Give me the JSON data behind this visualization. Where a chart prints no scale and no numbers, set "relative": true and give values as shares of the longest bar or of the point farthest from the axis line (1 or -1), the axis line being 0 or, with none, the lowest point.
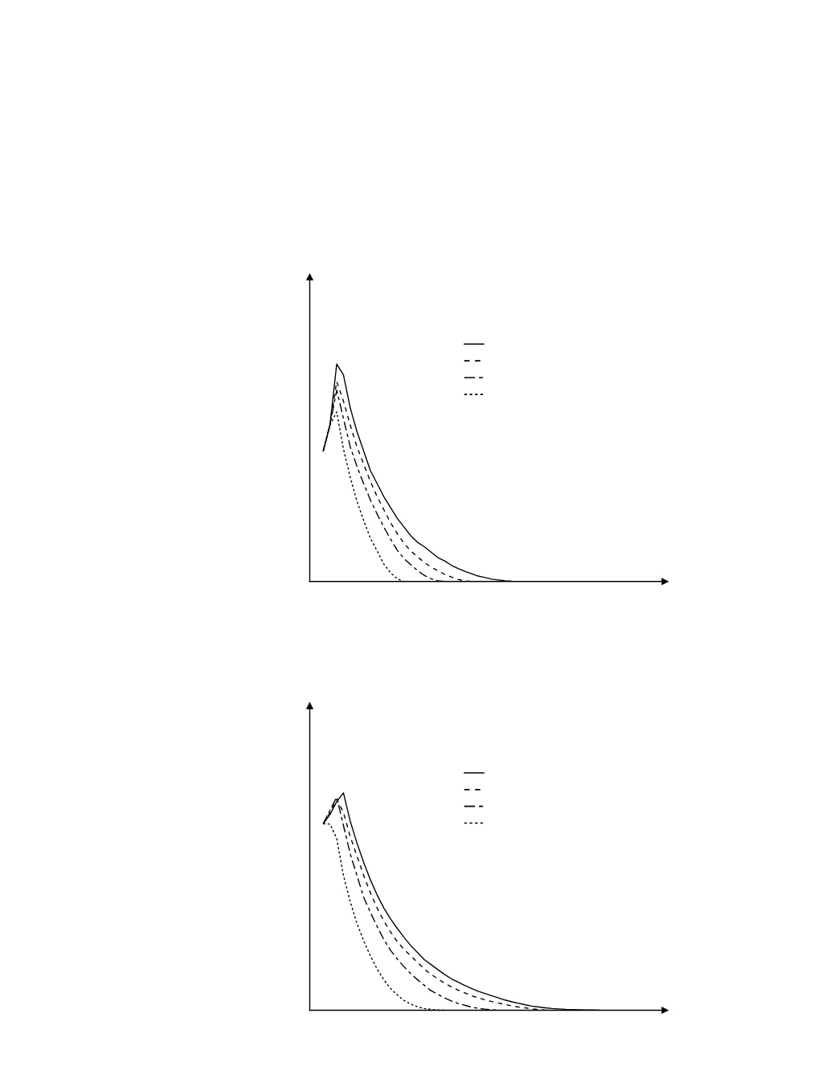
{
  "chart_data": [
    {
      "type": "line",
      "relative": true,
      "categories": [
        null,
        null,
        null,
        null,
        null,
        null,
        null,
        null,
        null,
        null,
        null,
        null,
        null,
        null,
        null,
        null,
        null,
        null,
        null,
        null,
        null,
        null,
        null,
        null,
        null,
        null,
        null,
        null,
        null,
        null,
        null,
        null,
        null,
        null,
        null,
        null,
        null,
        null,
        null,
        null,
        null,
        null,
        null,
        null,
        null,
        null,
        null,
        null,
        null,
        null,
        null,
        null,
        null
      ],
      "series": [
        {
          "color": "#000000",
          "line_style": "solid",
          "values": [
            null,
            null,
            0.6,
            0.72,
            1.0,
            0.95,
            0.8,
            0.69,
            0.6,
            0.51,
            0.45,
            0.39,
            0.34,
            0.29,
            0.25,
            0.21,
            0.18,
            0.16,
            0.135,
            0.11,
            0.095,
            0.075,
            0.06,
            0.047,
            0.036,
            0.025,
            0.018,
            0.011,
            0.007,
            0.003,
            0.001,
            0,
            null,
            null,
            null,
            null,
            null,
            null,
            null,
            null,
            null,
            null,
            null,
            null,
            null,
            null,
            null,
            null,
            null,
            null,
            null,
            null,
            null
          ]
        },
        {
          "color": "#000000",
          "line_style": "dashed",
          "values": [
            null,
            null,
            0.6,
            0.72,
            0.92,
            0.83,
            0.72,
            0.62,
            0.54,
            0.46,
            0.39,
            0.33,
            0.27,
            0.22,
            0.175,
            0.14,
            0.113,
            0.088,
            0.066,
            0.05,
            0.033,
            0.021,
            0.01,
            0.003,
            0,
            null,
            null,
            null,
            null,
            null,
            null,
            null,
            null,
            null,
            null,
            null,
            null,
            null,
            null,
            null,
            null,
            null,
            null,
            null,
            null,
            null,
            null,
            null,
            null,
            null,
            null,
            null,
            null
          ]
        },
        {
          "color": "#000000",
          "line_style": "dashdot",
          "values": [
            null,
            null,
            0.6,
            0.72,
            0.88,
            0.75,
            0.62,
            0.53,
            0.45,
            0.375,
            0.31,
            0.25,
            0.195,
            0.143,
            0.105,
            0.077,
            0.05,
            0.028,
            0.013,
            0.003,
            0,
            null,
            null,
            null,
            null,
            null,
            null,
            null,
            null,
            null,
            null,
            null,
            null,
            null,
            null,
            null,
            null,
            null,
            null,
            null,
            null,
            null,
            null,
            null,
            null,
            null,
            null,
            null,
            null,
            null,
            null,
            null,
            null
          ]
        },
        {
          "color": "#000000",
          "line_style": "dotted",
          "values": [
            null,
            null,
            0.6,
            0.72,
            0.78,
            0.61,
            0.48,
            0.37,
            0.28,
            0.2,
            0.14,
            0.08,
            0.04,
            0.012,
            0,
            null,
            null,
            null,
            null,
            null,
            null,
            null,
            null,
            null,
            null,
            null,
            null,
            null,
            null,
            null,
            null,
            null,
            null,
            null,
            null,
            null,
            null,
            null,
            null,
            null,
            null,
            null,
            null,
            null,
            null,
            null,
            null,
            null,
            null,
            null,
            null,
            null,
            null
          ]
        }
      ]
    },
    {
      "type": "line",
      "relative": true,
      "categories": [
        null,
        null,
        null,
        null,
        null,
        null,
        null,
        null,
        null,
        null,
        null,
        null,
        null,
        null,
        null,
        null,
        null,
        null,
        null,
        null,
        null,
        null,
        null,
        null,
        null,
        null,
        null,
        null,
        null,
        null,
        null,
        null,
        null,
        null,
        null,
        null,
        null,
        null,
        null,
        null,
        null,
        null,
        null,
        null,
        null,
        null,
        null,
        null,
        null,
        null,
        null,
        null,
        null
      ],
      "series": [
        {
          "color": "#000000",
          "line_style": "solid",
          "values": [
            null,
            null,
            0.858,
            0.9,
            0.96,
            1.0,
            0.87,
            0.77,
            0.68,
            0.6,
            0.53,
            0.47,
            0.42,
            0.376,
            0.335,
            0.297,
            0.265,
            0.233,
            0.21,
            0.187,
            0.165,
            0.145,
            0.13,
            0.114,
            0.1,
            0.087,
            0.077,
            0.067,
            0.057,
            0.047,
            0.039,
            0.032,
            0.025,
            0.019,
            0.015,
            0.011,
            0.008,
            0.006,
            0.004,
            0.003,
            0.002,
            0.001,
            0.001,
            0,
            null,
            null,
            null,
            null,
            null,
            null,
            null,
            null,
            null
          ]
        },
        {
          "color": "#000000",
          "line_style": "dashed",
          "values": [
            null,
            null,
            0.858,
            0.91,
            0.97,
            0.91,
            0.8,
            0.71,
            0.62,
            0.54,
            0.47,
            0.41,
            0.36,
            0.315,
            0.28,
            0.25,
            0.22,
            0.19,
            0.165,
            0.145,
            0.125,
            0.108,
            0.093,
            0.08,
            0.067,
            0.057,
            0.048,
            0.04,
            0.033,
            0.027,
            0.02,
            0.015,
            0.011,
            0.006,
            0.003,
            0,
            null,
            null,
            null,
            null,
            null,
            null,
            null,
            null,
            null,
            null,
            null,
            null,
            null,
            null,
            null,
            null,
            null
          ]
        },
        {
          "color": "#000000",
          "line_style": "dashdot",
          "values": [
            null,
            null,
            0.858,
            0.92,
            0.98,
            0.85,
            0.72,
            0.62,
            0.52,
            0.45,
            0.385,
            0.325,
            0.275,
            0.235,
            0.2,
            0.168,
            0.14,
            0.115,
            0.09,
            0.073,
            0.057,
            0.043,
            0.032,
            0.023,
            0.015,
            0.009,
            0.005,
            0.002,
            0,
            null,
            null,
            null,
            null,
            null,
            null,
            null,
            null,
            null,
            null,
            null,
            null,
            null,
            null,
            null,
            null,
            null,
            null,
            null,
            null,
            null,
            null,
            null,
            null
          ]
        },
        {
          "color": "#000000",
          "line_style": "dotted",
          "values": [
            null,
            null,
            0.858,
            0.856,
            0.79,
            0.62,
            0.5,
            0.4,
            0.32,
            0.25,
            0.19,
            0.14,
            0.1,
            0.07,
            0.045,
            0.028,
            0.016,
            0.008,
            0.004,
            0.001,
            0,
            null,
            null,
            null,
            null,
            null,
            null,
            null,
            null,
            null,
            null,
            null,
            null,
            null,
            null,
            null,
            null,
            null,
            null,
            null,
            null,
            null,
            null,
            null,
            null,
            null,
            null,
            null,
            null,
            null,
            null,
            null,
            null
          ]
        }
      ]
    }
  ]
}
